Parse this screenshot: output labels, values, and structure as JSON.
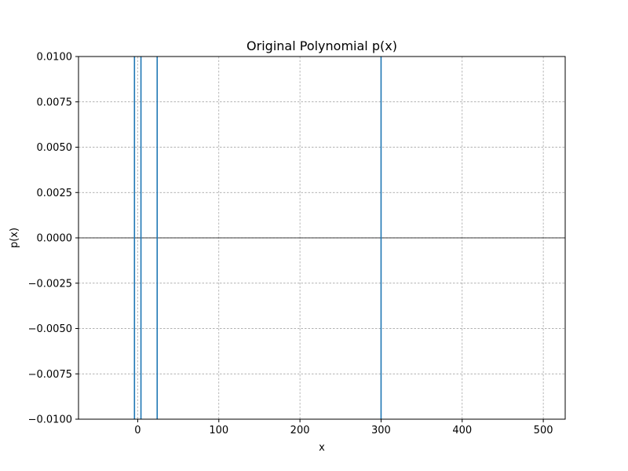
{
  "chart_data": {
    "type": "line",
    "title": "Original Polynomial p(x)",
    "xlabel": "x",
    "ylabel": "p(x)",
    "xlim": [
      -73,
      527
    ],
    "ylim": [
      -0.01,
      0.01
    ],
    "xticks": [
      0,
      100,
      200,
      300,
      400,
      500
    ],
    "xtick_labels": [
      "0",
      "100",
      "200",
      "300",
      "400",
      "500"
    ],
    "yticks": [
      -0.01,
      -0.0075,
      -0.005,
      -0.0025,
      0.0,
      0.0025,
      0.005,
      0.0075,
      0.01
    ],
    "ytick_labels": [
      "−0.0100",
      "−0.0075",
      "−0.0050",
      "−0.0025",
      "0.0000",
      "0.0025",
      "0.0050",
      "0.0075",
      "0.0100"
    ],
    "grid": true,
    "zero_line": true,
    "series_color": "#1f77b4",
    "crossings_x": [
      -4,
      4,
      24,
      300
    ]
  }
}
